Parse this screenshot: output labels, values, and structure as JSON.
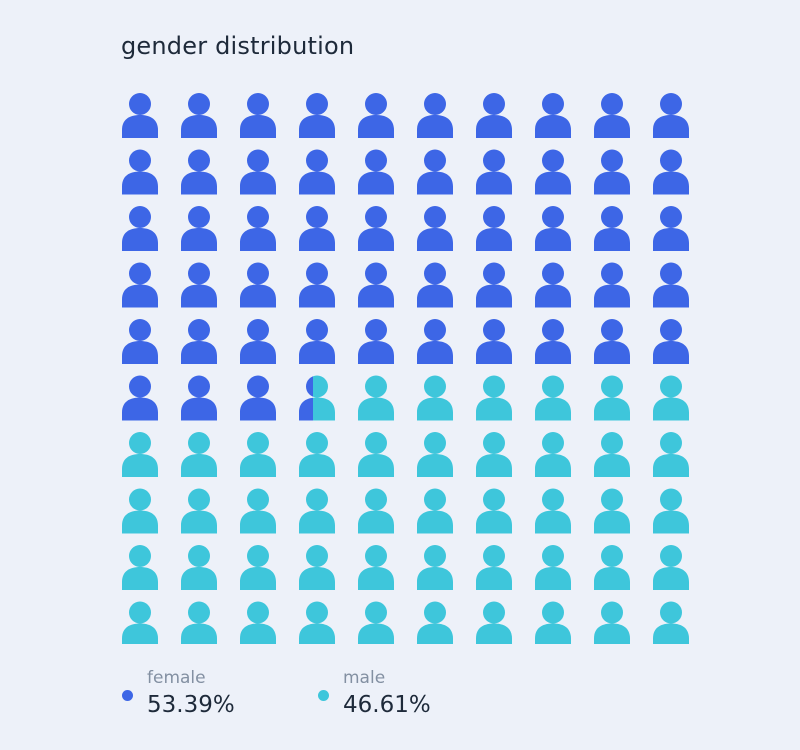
{
  "title": "gender distribution",
  "chart_data": {
    "type": "pictogram",
    "total_icons": 100,
    "columns": 10,
    "rows": 10,
    "icon": "person-icon",
    "series": [
      {
        "name": "female",
        "value": 53.39,
        "display": "53.39%",
        "color": "#3d66e6"
      },
      {
        "name": "male",
        "value": 46.61,
        "display": "46.61%",
        "color": "#3ec6db"
      }
    ]
  }
}
